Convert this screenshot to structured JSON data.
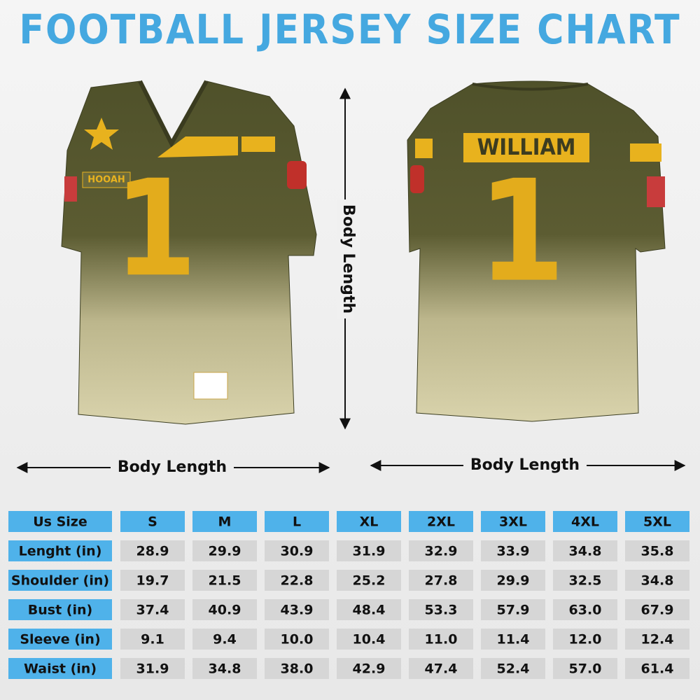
{
  "header": {
    "title": "FOOTBALL JERSEY SIZE CHART"
  },
  "jersey_front": {
    "name_tag": "HOOAH",
    "number": "1"
  },
  "jersey_back": {
    "name": "WILLIAM",
    "number": "1"
  },
  "measurements": {
    "vertical": "Body Length",
    "front_horizontal": "Body Length",
    "back_horizontal": "Body Length"
  },
  "table": {
    "header": [
      "Us Size",
      "S",
      "M",
      "L",
      "XL",
      "2XL",
      "3XL",
      "4XL",
      "5XL"
    ],
    "rows": [
      [
        "Lenght (in)",
        "28.9",
        "29.9",
        "30.9",
        "31.9",
        "32.9",
        "33.9",
        "34.8",
        "35.8"
      ],
      [
        "Shoulder (in)",
        "19.7",
        "21.5",
        "22.8",
        "25.2",
        "27.8",
        "29.9",
        "32.5",
        "34.8"
      ],
      [
        "Bust (in)",
        "37.4",
        "40.9",
        "43.9",
        "48.4",
        "53.3",
        "57.9",
        "63.0",
        "67.9"
      ],
      [
        "Sleeve (in)",
        "9.1",
        "9.4",
        "10.0",
        "10.4",
        "11.0",
        "11.4",
        "12.0",
        "12.4"
      ],
      [
        "Waist (in)",
        "31.9",
        "34.8",
        "38.0",
        "42.9",
        "47.4",
        "52.4",
        "57.0",
        "61.4"
      ]
    ]
  }
}
